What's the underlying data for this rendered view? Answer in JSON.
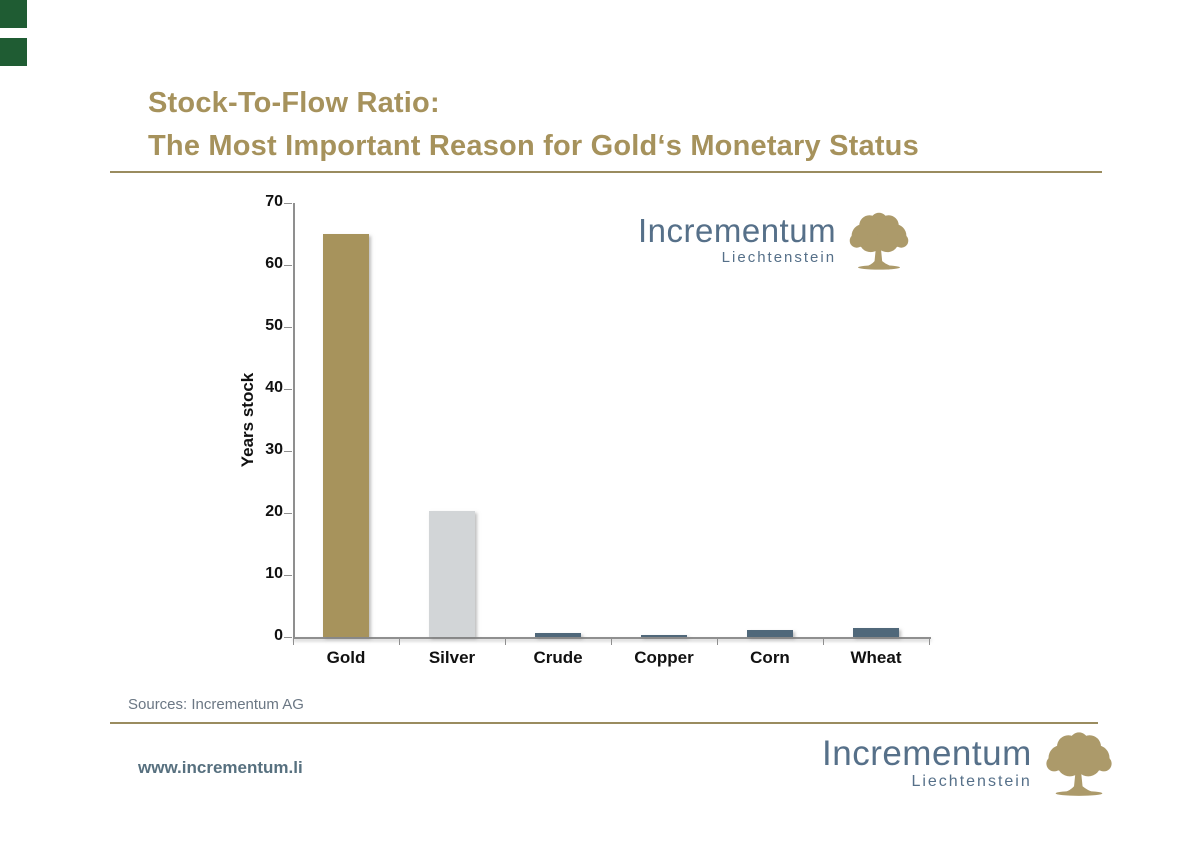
{
  "slide": {
    "title_line1": "Stock-To-Flow Ratio:",
    "title_line2": "The Most Important Reason for Gold‘s Monetary Status",
    "sources": "Sources: Incrementum AG",
    "footer_url": "www.incrementum.li"
  },
  "logo": {
    "name": "Incrementum",
    "subtitle": "Liechtenstein",
    "text_color": "#567089",
    "tree_color": "#AC9A6A"
  },
  "colors": {
    "title": "#A6925C",
    "divider": "#9A8C5F",
    "corner_squares": "#1F5C33",
    "sources_text": "#6B7784",
    "footer_url_text": "#57707F"
  },
  "chart_data": {
    "type": "bar",
    "categories": [
      "Gold",
      "Silver",
      "Crude",
      "Copper",
      "Corn",
      "Wheat"
    ],
    "values": [
      65,
      20.3,
      0.6,
      0.4,
      1.2,
      1.5
    ],
    "bar_colors": [
      "#A7935C",
      "#D2D5D7",
      "#50687A",
      "#50687A",
      "#50687A",
      "#50687A"
    ],
    "title": "",
    "xlabel": "",
    "ylabel": "Years stock",
    "ylim": [
      0,
      70
    ],
    "yticks": [
      0,
      10,
      20,
      30,
      40,
      50,
      60,
      70
    ],
    "grid": false,
    "legend": null
  }
}
